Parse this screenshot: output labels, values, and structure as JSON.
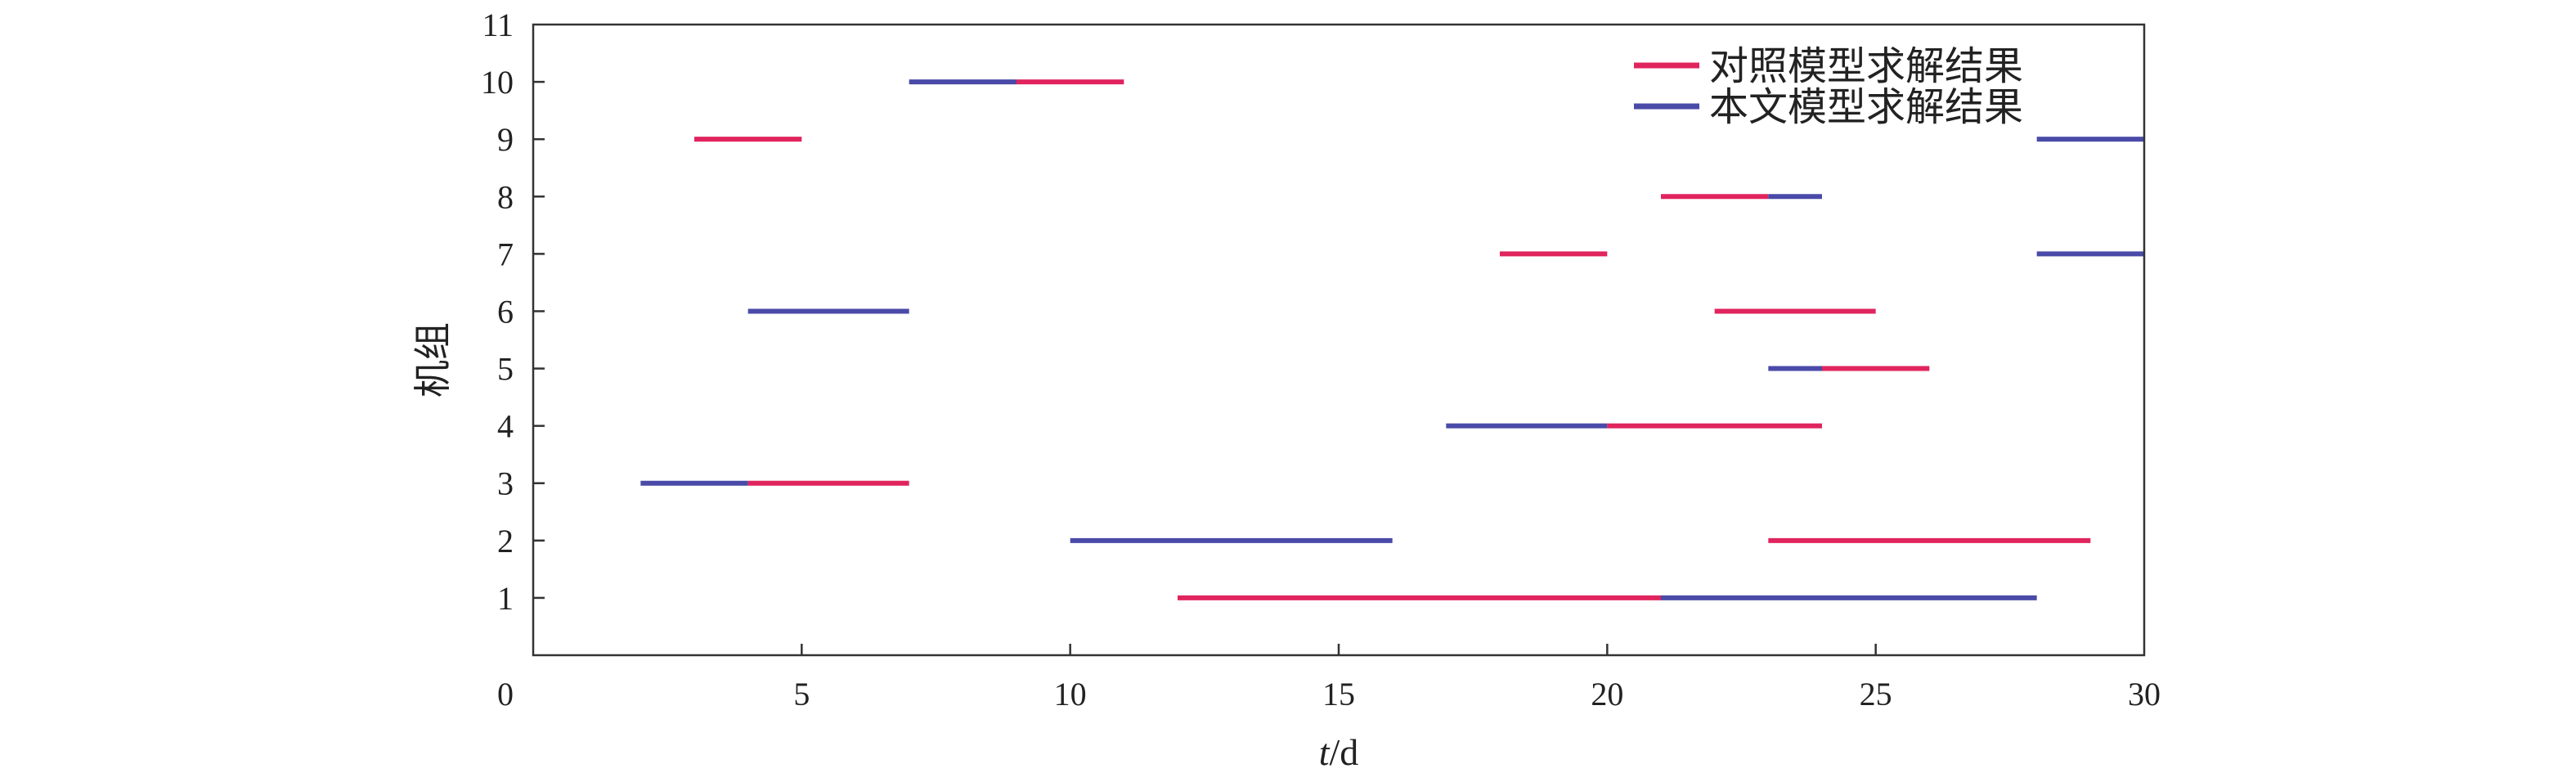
{
  "chart_data": {
    "type": "gantt",
    "xlabel_italic": "t",
    "xlabel_rest": "/d",
    "ylabel": "机组",
    "xlim": [
      0,
      30
    ],
    "ylim": [
      0,
      11
    ],
    "xticks": [
      0,
      5,
      10,
      15,
      20,
      25,
      30
    ],
    "yticks": [
      1,
      2,
      3,
      4,
      5,
      6,
      7,
      8,
      9,
      10,
      11
    ],
    "grid": false,
    "legend_position": "top-right",
    "series": [
      {
        "name": "对照模型求解结果",
        "color": "#e0245e",
        "segments": [
          {
            "unit": 10,
            "start": 9,
            "end": 11
          },
          {
            "unit": 9,
            "start": 3,
            "end": 5
          },
          {
            "unit": 8,
            "start": 21,
            "end": 23
          },
          {
            "unit": 7,
            "start": 18,
            "end": 20
          },
          {
            "unit": 6,
            "start": 22,
            "end": 25
          },
          {
            "unit": 5,
            "start": 24,
            "end": 26
          },
          {
            "unit": 4,
            "start": 20,
            "end": 24
          },
          {
            "unit": 3,
            "start": 4,
            "end": 7
          },
          {
            "unit": 2,
            "start": 23,
            "end": 29
          },
          {
            "unit": 1,
            "start": 12,
            "end": 21
          }
        ]
      },
      {
        "name": "本文模型求解结果",
        "color": "#4a4aa8",
        "segments": [
          {
            "unit": 10,
            "start": 7,
            "end": 9
          },
          {
            "unit": 9,
            "start": 28,
            "end": 30
          },
          {
            "unit": 8,
            "start": 23,
            "end": 24
          },
          {
            "unit": 7,
            "start": 28,
            "end": 30
          },
          {
            "unit": 6,
            "start": 4,
            "end": 7
          },
          {
            "unit": 5,
            "start": 23,
            "end": 24
          },
          {
            "unit": 4,
            "start": 17,
            "end": 20
          },
          {
            "unit": 3,
            "start": 2,
            "end": 4
          },
          {
            "unit": 2,
            "start": 10,
            "end": 16
          },
          {
            "unit": 1,
            "start": 21,
            "end": 28
          }
        ]
      }
    ]
  }
}
